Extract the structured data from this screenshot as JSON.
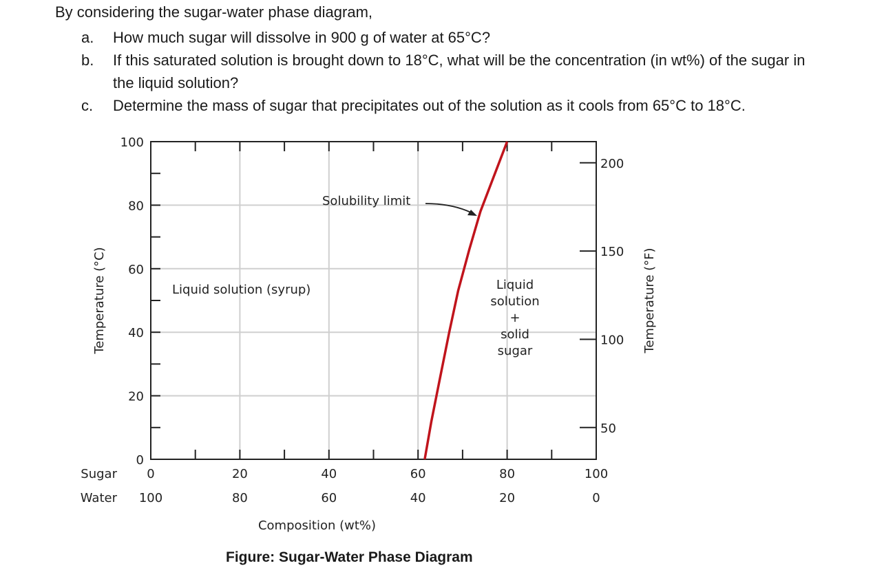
{
  "question": {
    "intro": "By considering the sugar-water phase diagram,",
    "items": [
      {
        "letter": "a.",
        "text": "How much sugar will dissolve in 900 g of water at 65°C?"
      },
      {
        "letter": "b.",
        "text": "If this saturated solution is brought down to 18°C, what will be the concentration (in wt%) of the sugar in the liquid solution?"
      },
      {
        "letter": "c.",
        "text": "Determine the mass of sugar that precipitates out of the solution as it cools from 65°C to 18°C."
      }
    ]
  },
  "figure_caption": "Figure: Sugar-Water Phase Diagram",
  "chart_data": {
    "type": "line",
    "title": "",
    "xlabel": "Composition (wt%)",
    "ylabel": "Temperature (°C)",
    "y2label": "Temperature (°F)",
    "xlim": [
      0,
      100
    ],
    "ylim": [
      0,
      100
    ],
    "x_ticks_sugar": [
      "0",
      "20",
      "40",
      "60",
      "80",
      "100"
    ],
    "x_ticks_water": [
      "100",
      "80",
      "60",
      "40",
      "20",
      "0"
    ],
    "x_row_labels": {
      "sugar": "Sugar",
      "water": "Water"
    },
    "y_ticks": [
      "0",
      "20",
      "40",
      "60",
      "80",
      "100"
    ],
    "y2_ticks": [
      "200",
      "150",
      "100",
      "50"
    ],
    "y2_tick_values_F": [
      200,
      150,
      100,
      50
    ],
    "grid": true,
    "series": [
      {
        "x": [
          61.5,
          63,
          65,
          67,
          69,
          71.5,
          74,
          77,
          80
        ],
        "y": [
          0,
          12,
          26,
          40,
          53,
          66,
          78,
          89,
          100
        ],
        "color": "#c0141c"
      }
    ],
    "annotations": {
      "solubility_limit": "Solubility limit",
      "liquid_region": "Liquid solution (syrup)",
      "two_phase_region": [
        "Liquid",
        "solution",
        "+",
        "solid",
        "sugar"
      ]
    }
  }
}
